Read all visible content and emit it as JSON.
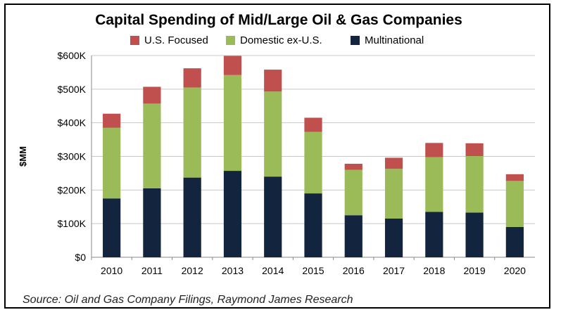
{
  "chart_data": {
    "type": "bar",
    "stacked": true,
    "title": "Capital Spending of Mid/Large Oil & Gas Companies",
    "ylabel": "$MM",
    "xlabel": "",
    "categories": [
      "2010",
      "2011",
      "2012",
      "2013",
      "2014",
      "2015",
      "2016",
      "2017",
      "2018",
      "2019",
      "2020"
    ],
    "series": [
      {
        "name": "Multinational",
        "color": "#13243f",
        "values": [
          175,
          205,
          237,
          257,
          240,
          190,
          125,
          115,
          135,
          133,
          90
        ]
      },
      {
        "name": "Domestic ex-U.S.",
        "color": "#9bbb59",
        "values": [
          210,
          252,
          268,
          285,
          253,
          183,
          135,
          148,
          163,
          168,
          137
        ]
      },
      {
        "name": "U.S. Focused",
        "color": "#c0504d",
        "values": [
          42,
          50,
          57,
          57,
          65,
          42,
          18,
          33,
          42,
          38,
          20
        ]
      }
    ],
    "legend_order": [
      "U.S. Focused",
      "Domestic ex-U.S.",
      "Multinational"
    ],
    "legend_position": "top",
    "ylim": [
      0,
      600
    ],
    "yticks": [
      0,
      100,
      200,
      300,
      400,
      500,
      600
    ],
    "ytick_labels": [
      "$0",
      "$100K",
      "$200K",
      "$300K",
      "$400K",
      "$500K",
      "$600K"
    ],
    "grid": true
  },
  "source": "Source: Oil and Gas Company Filings, Raymond James Research"
}
